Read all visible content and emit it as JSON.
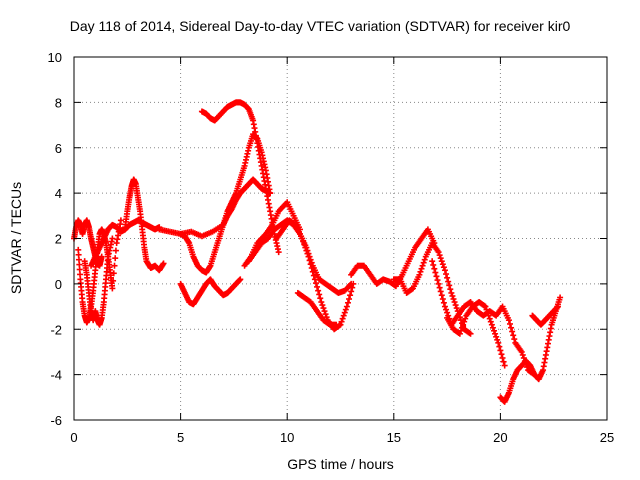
{
  "chart_data": {
    "type": "scatter",
    "title": "Day 118 of 2014, Sidereal Day-to-day VTEC variation (SDTVAR) for receiver kir0",
    "xlabel": "GPS time / hours",
    "ylabel": "SDTVAR / TECUs",
    "xlim": [
      0,
      25
    ],
    "ylim": [
      -6,
      10
    ],
    "xticks": [
      "0",
      "5",
      "10",
      "15",
      "20",
      "25"
    ],
    "yticks": [
      "-6",
      "-4",
      "-2",
      "0",
      "2",
      "4",
      "6",
      "8",
      "10"
    ],
    "grid": true,
    "grid_style": "dotted",
    "marker": "+",
    "color": "#ff0000",
    "series": [
      {
        "x": [
          0.0,
          0.1,
          0.2,
          0.3,
          0.4,
          0.5,
          0.6,
          0.7,
          0.8,
          0.9,
          1.0,
          1.1,
          1.2,
          1.3
        ],
        "y": [
          2.0,
          2.5,
          2.8,
          2.6,
          2.2,
          2.6,
          2.8,
          2.5,
          2.0,
          1.6,
          1.2,
          0.9,
          0.8,
          1.2
        ]
      },
      {
        "x": [
          0.2,
          0.3,
          0.4,
          0.5,
          0.6,
          0.7,
          0.8,
          0.9,
          1.0,
          1.1,
          1.2,
          1.3,
          1.4,
          1.5,
          1.6,
          1.7,
          1.8,
          2.0,
          2.2
        ],
        "y": [
          1.5,
          0.2,
          -0.8,
          -1.4,
          -1.7,
          -1.5,
          -1.0,
          -0.3,
          0.6,
          1.5,
          2.2,
          2.4,
          2.2,
          1.8,
          1.2,
          0.5,
          -0.2,
          1.8,
          2.8
        ]
      },
      {
        "x": [
          0.5,
          0.6,
          0.7,
          0.8,
          0.9,
          1.0,
          1.1,
          1.2,
          1.3,
          1.4,
          1.5,
          1.6,
          1.8
        ],
        "y": [
          1.0,
          0.4,
          -0.4,
          -1.2,
          -1.6,
          -1.2,
          -1.6,
          -1.8,
          -1.5,
          -0.8,
          0.2,
          1.2,
          2.0
        ]
      },
      {
        "x": [
          0.8,
          1.0,
          1.2,
          1.4,
          1.6,
          1.8,
          2.0,
          2.2,
          2.4,
          2.6,
          2.8,
          3.0,
          3.2,
          3.4,
          3.6,
          3.8,
          4.0
        ],
        "y": [
          0.8,
          1.2,
          1.6,
          2.0,
          2.4,
          2.6,
          2.5,
          2.3,
          2.4,
          2.6,
          2.7,
          2.8,
          2.7,
          2.6,
          2.5,
          2.4,
          2.5
        ]
      },
      {
        "x": [
          2.4,
          2.5,
          2.6,
          2.7,
          2.8,
          2.9,
          3.0,
          3.1,
          3.2,
          3.3,
          3.4,
          3.6,
          3.8,
          4.0,
          4.2
        ],
        "y": [
          2.5,
          3.2,
          3.8,
          4.3,
          4.6,
          4.4,
          3.8,
          3.2,
          2.4,
          1.6,
          1.0,
          0.7,
          0.8,
          0.6,
          0.9
        ]
      },
      {
        "x": [
          4.0,
          4.5,
          5.0,
          5.5,
          6.0,
          6.5,
          7.0,
          7.2,
          7.4,
          7.6,
          7.8,
          8.0,
          8.2,
          8.4,
          8.6,
          8.8,
          9.0,
          9.2
        ],
        "y": [
          2.4,
          2.3,
          2.2,
          2.3,
          2.1,
          2.3,
          2.6,
          3.0,
          3.3,
          3.7,
          4.0,
          4.2,
          4.4,
          4.6,
          4.4,
          4.2,
          4.1,
          4.0
        ]
      },
      {
        "x": [
          5.0,
          5.2,
          5.4,
          5.6,
          5.8,
          6.0,
          6.2,
          6.4,
          6.6,
          6.8,
          7.0,
          7.2,
          7.4,
          7.6,
          7.8,
          8.0,
          8.2,
          8.4,
          8.6,
          8.8,
          9.0,
          9.2
        ],
        "y": [
          2.2,
          2.1,
          1.8,
          1.2,
          0.8,
          0.6,
          0.5,
          0.8,
          1.4,
          2.0,
          2.6,
          3.2,
          3.6,
          4.0,
          4.6,
          5.2,
          6.0,
          6.6,
          6.4,
          5.8,
          5.0,
          4.0
        ]
      },
      {
        "x": [
          6.0,
          6.2,
          6.4,
          6.6,
          6.8,
          7.0,
          7.2,
          7.4,
          7.6,
          7.8,
          8.0,
          8.2,
          8.4,
          8.6,
          8.8,
          9.0,
          9.2,
          9.4,
          9.6
        ],
        "y": [
          7.6,
          7.5,
          7.3,
          7.2,
          7.4,
          7.6,
          7.8,
          7.9,
          8.0,
          8.0,
          7.9,
          7.7,
          7.2,
          6.2,
          5.2,
          4.2,
          3.2,
          2.2,
          1.4
        ]
      },
      {
        "x": [
          5.0,
          5.2,
          5.4,
          5.6,
          5.8,
          6.0,
          6.2,
          6.4,
          6.6,
          6.8,
          7.0,
          7.2,
          7.4,
          7.6,
          7.8
        ],
        "y": [
          0.0,
          -0.4,
          -0.8,
          -0.9,
          -0.6,
          -0.3,
          0.0,
          0.2,
          -0.1,
          -0.3,
          -0.5,
          -0.4,
          -0.2,
          0.0,
          0.2
        ]
      },
      {
        "x": [
          8.0,
          8.3,
          8.6,
          9.0,
          9.3,
          9.6,
          10.0,
          10.3,
          10.6
        ],
        "y": [
          0.8,
          1.2,
          1.8,
          2.2,
          2.6,
          3.2,
          3.6,
          3.0,
          2.4
        ]
      },
      {
        "x": [
          8.2,
          8.5,
          8.8,
          9.1,
          9.4,
          9.7,
          10.0,
          10.3,
          10.6,
          10.9,
          11.2,
          11.5,
          11.8,
          12.1,
          12.4,
          12.7,
          13.0
        ],
        "y": [
          1.0,
          1.4,
          1.8,
          2.0,
          2.4,
          2.6,
          2.8,
          2.6,
          2.2,
          1.6,
          0.8,
          0.2,
          0.0,
          -0.2,
          -0.4,
          -0.3,
          0.0
        ]
      },
      {
        "x": [
          9.5,
          9.8,
          10.1,
          10.4,
          10.7,
          11.0,
          11.3,
          11.6,
          11.9,
          12.2,
          12.5,
          12.8,
          13.1
        ],
        "y": [
          2.0,
          2.4,
          2.8,
          2.6,
          2.0,
          1.2,
          0.2,
          -0.8,
          -1.6,
          -2.0,
          -1.8,
          -1.0,
          0.0
        ]
      },
      {
        "x": [
          10.5,
          10.8,
          11.1,
          11.4,
          11.7,
          12.0,
          12.3
        ],
        "y": [
          -0.4,
          -0.6,
          -0.8,
          -1.2,
          -1.6,
          -1.8,
          -1.8
        ]
      },
      {
        "x": [
          13.0,
          13.3,
          13.6,
          13.9,
          14.2,
          14.5,
          14.8,
          15.1,
          15.4,
          15.7,
          16.0,
          16.3,
          16.6,
          16.9
        ],
        "y": [
          0.4,
          0.8,
          0.8,
          0.4,
          0.0,
          0.2,
          0.1,
          -0.1,
          0.4,
          1.0,
          1.6,
          2.0,
          2.4,
          1.8
        ]
      },
      {
        "x": [
          15.0,
          15.3,
          15.6,
          15.9,
          16.2,
          16.5,
          16.8,
          17.1,
          17.4,
          17.7,
          18.0,
          18.3,
          18.6
        ],
        "y": [
          0.2,
          0.2,
          -0.4,
          -0.2,
          0.4,
          1.2,
          1.8,
          1.4,
          0.6,
          -0.4,
          -1.2,
          -2.0,
          -2.2
        ]
      },
      {
        "x": [
          16.8,
          17.1,
          17.4,
          17.7,
          18.0,
          18.3,
          18.6,
          18.9,
          19.2,
          19.5,
          19.8,
          20.1,
          20.4,
          20.7,
          21.0,
          21.3,
          21.6
        ],
        "y": [
          1.0,
          0.0,
          -1.0,
          -1.8,
          -1.4,
          -1.0,
          -0.8,
          -1.2,
          -1.4,
          -1.2,
          -1.4,
          -1.0,
          -1.6,
          -2.6,
          -3.0,
          -3.8,
          -4.0
        ]
      },
      {
        "x": [
          17.5,
          17.8,
          18.1,
          18.4,
          18.7,
          19.0,
          19.3,
          19.6,
          19.9,
          20.2
        ],
        "y": [
          -1.5,
          -2.0,
          -2.2,
          -1.4,
          -1.0,
          -0.8,
          -1.0,
          -1.8,
          -2.6,
          -3.6
        ]
      },
      {
        "x": [
          20.0,
          20.2,
          20.4,
          20.6,
          20.8,
          21.0,
          21.2,
          21.4,
          21.6,
          21.8,
          22.0,
          22.2,
          22.4,
          22.6,
          22.8
        ],
        "y": [
          -5.0,
          -5.2,
          -4.8,
          -4.2,
          -3.8,
          -3.6,
          -3.4,
          -3.6,
          -4.0,
          -4.2,
          -3.8,
          -2.8,
          -1.8,
          -1.2,
          -0.6
        ]
      },
      {
        "x": [
          21.5,
          21.7,
          21.9,
          22.1,
          22.3,
          22.5,
          22.7
        ],
        "y": [
          -1.4,
          -1.6,
          -1.8,
          -1.6,
          -1.4,
          -1.2,
          -1.0
        ]
      }
    ]
  }
}
